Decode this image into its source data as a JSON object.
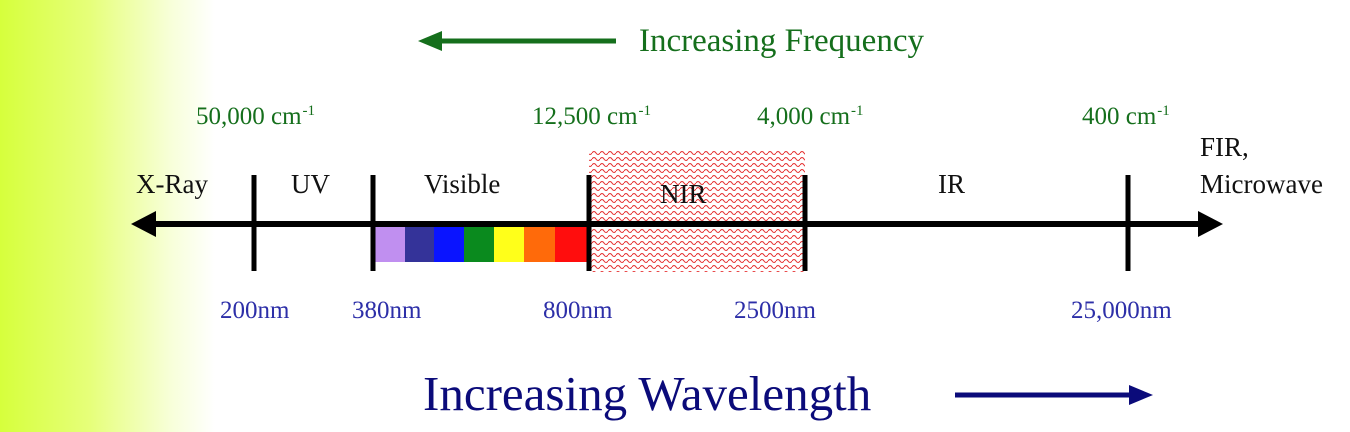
{
  "frequency_label": "Increasing Frequency",
  "wavelength_label": "Increasing Wavelength",
  "wavenumbers": {
    "w50000": "50,000 cm",
    "w12500": "12,500 cm",
    "w4000": "4,000 cm",
    "w400": "400 cm",
    "exponent": "-1"
  },
  "wavelengths": {
    "nm200": "200nm",
    "nm380": "380nm",
    "nm800": "800nm",
    "nm2500": "2500nm",
    "nm25000": "25,000nm"
  },
  "regions": {
    "xray": "X-Ray",
    "uv": "UV",
    "visible": "Visible",
    "nir": "NIR",
    "ir": "IR",
    "fir_line1": "FIR,",
    "fir_line2": "Microwave"
  },
  "colors": {
    "frequency_green": "#156f1c",
    "wavelength_blue": "#0b0b7a",
    "nir_hatch": "#e53030",
    "spectrum": [
      "#c08ff0",
      "#343399",
      "#0a14ff",
      "#0a8a1e",
      "#ffff1a",
      "#ff6a0a",
      "#ff0d0d"
    ]
  }
}
